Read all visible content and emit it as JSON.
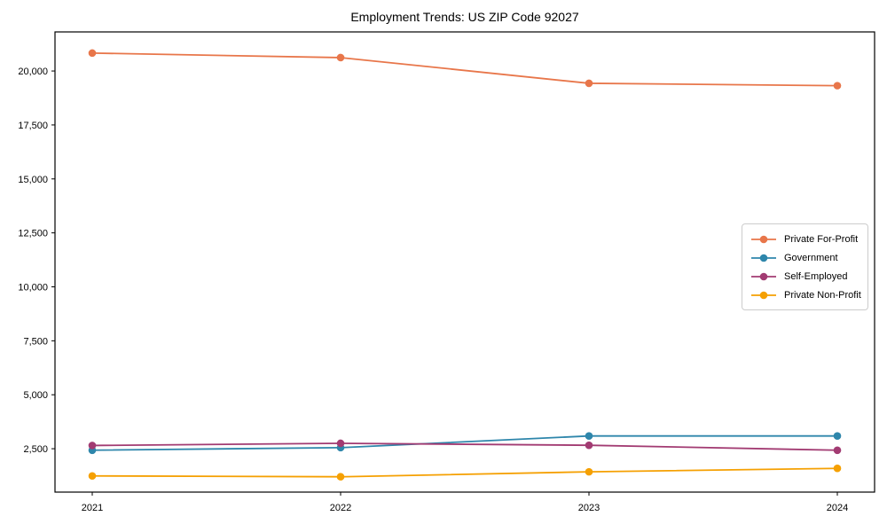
{
  "page": {
    "background": "#ffffff"
  },
  "chart_data": {
    "type": "line",
    "title": "Employment Trends: US ZIP Code 92027",
    "x": [
      2021,
      2022,
      2023,
      2024
    ],
    "x_tick_labels": [
      "2021",
      "2022",
      "2023",
      "2024"
    ],
    "series": [
      {
        "name": "Private For-Profit",
        "color": "#E8764A",
        "values": [
          20830,
          20620,
          19430,
          19320
        ]
      },
      {
        "name": "Government",
        "color": "#2E86AB",
        "values": [
          2430,
          2550,
          3090,
          3090
        ]
      },
      {
        "name": "Self-Employed",
        "color": "#A23B72",
        "values": [
          2650,
          2750,
          2660,
          2430
        ]
      },
      {
        "name": "Private Non-Profit",
        "color": "#F5A002",
        "values": [
          1240,
          1200,
          1430,
          1590
        ]
      }
    ],
    "y_ticks": [
      2500,
      5000,
      7500,
      10000,
      12500,
      15000,
      17500,
      20000
    ],
    "y_tick_labels": [
      "2,500",
      "5,000",
      "7,500",
      "10,000",
      "12,500",
      "15,000",
      "17,500",
      "20,000"
    ],
    "xlabel": "",
    "ylabel": "",
    "xlim": [
      2020.85,
      2024.15
    ],
    "ylim": [
      490,
      21810
    ],
    "grid": false,
    "legend_position": "center right",
    "marker": "circle",
    "axis_color": "#000000",
    "tick_label_color": "#000000"
  }
}
